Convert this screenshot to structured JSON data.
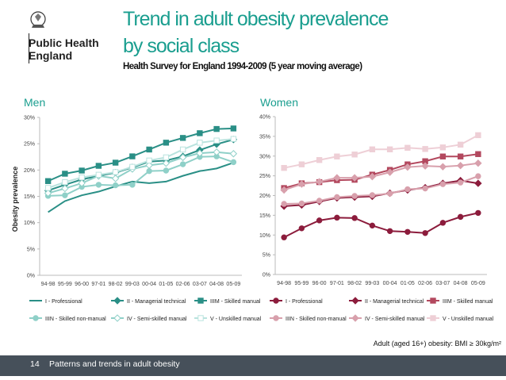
{
  "logo": {
    "line1": "Public Health",
    "line2": "England"
  },
  "title": {
    "line1": "Trend in adult obesity prevalence",
    "line2": "by social class"
  },
  "subtitle": "Health Survey for England 1994-2009 (5 year moving average)",
  "footnote": "Adult (aged 16+) obesity: BMI ≥ 30kg/m²",
  "footer": {
    "page": "14",
    "text": "Patterns and trends in adult obesity"
  },
  "colors": {
    "accent": "#1a9e8f",
    "footer_bg": "#46505a",
    "men_dark": "#3a9a92",
    "women_dark": "#8c1c3c"
  },
  "chart_data": [
    {
      "type": "line",
      "panel_label": "Men",
      "ylabel": "Obesity prevalence",
      "categories": [
        "94-98",
        "95-99",
        "96-00",
        "97-01",
        "98-02",
        "99-03",
        "00-04",
        "01-05",
        "02-06",
        "03-07",
        "04-08",
        "05-09"
      ],
      "yticks": [
        "0%",
        "5%",
        "10%",
        "15%",
        "20%",
        "25%",
        "30%"
      ],
      "ylim": [
        0,
        30
      ],
      "grid": false,
      "legend": "bottom",
      "series": [
        {
          "name": "I - Professional",
          "marker": "line",
          "color": "#2a8f86",
          "values": [
            12.0,
            14.1,
            15.2,
            15.9,
            16.9,
            17.8,
            17.5,
            17.8,
            18.9,
            19.8,
            20.3,
            21.4
          ]
        },
        {
          "name": "II - Managerial technical",
          "marker": "diamond-filled",
          "color": "#2a8f86",
          "values": [
            16.1,
            17.2,
            18.2,
            18.9,
            19.5,
            20.5,
            21.6,
            21.8,
            22.6,
            23.8,
            24.9,
            25.8
          ]
        },
        {
          "name": "IIIM - Skilled manual",
          "marker": "square-filled",
          "color": "#2a8f86",
          "values": [
            17.9,
            19.3,
            19.9,
            20.8,
            21.4,
            22.6,
            23.9,
            25.2,
            26.1,
            27.0,
            27.8,
            27.9
          ]
        },
        {
          "name": "IIIN - Skilled non-manual",
          "marker": "circle-filled",
          "color": "#8fd0c8",
          "values": [
            15.1,
            15.2,
            16.8,
            17.2,
            17.1,
            17.2,
            19.8,
            19.9,
            21.1,
            22.5,
            22.6,
            21.5
          ]
        },
        {
          "name": "IV - Semi-skilled manual",
          "marker": "diamond-open",
          "color": "#8fd0c8",
          "values": [
            15.6,
            16.5,
            17.5,
            18.9,
            18.4,
            20.2,
            20.9,
            21.3,
            22.4,
            23.2,
            23.4,
            23.1
          ]
        },
        {
          "name": "V - Unskilled manual",
          "marker": "square-open",
          "color": "#b9e3de",
          "values": [
            16.6,
            17.7,
            18.6,
            19.1,
            19.6,
            20.6,
            21.8,
            22.4,
            23.9,
            25.2,
            25.6,
            25.9
          ]
        }
      ]
    },
    {
      "type": "line",
      "panel_label": "Women",
      "categories": [
        "94-98",
        "95-99",
        "96-00",
        "97-01",
        "98-02",
        "99-03",
        "00-04",
        "01-05",
        "02-06",
        "03-07",
        "04-08",
        "05-09"
      ],
      "yticks": [
        "0%",
        "5%",
        "10%",
        "15%",
        "20%",
        "25%",
        "30%",
        "35%",
        "40%"
      ],
      "ylim": [
        0,
        40
      ],
      "grid": false,
      "legend": "bottom",
      "series": [
        {
          "name": "I - Professional",
          "marker": "circle-filled",
          "color": "#8c1c3c",
          "values": [
            9.4,
            11.7,
            13.7,
            14.4,
            14.3,
            12.4,
            11.0,
            10.8,
            10.5,
            13.1,
            14.6,
            15.6
          ]
        },
        {
          "name": "II - Managerial technical",
          "marker": "diamond-filled",
          "color": "#8c1c3c",
          "values": [
            17.3,
            17.6,
            18.5,
            19.4,
            19.6,
            19.8,
            20.6,
            21.4,
            22.0,
            23.1,
            23.8,
            23.1
          ]
        },
        {
          "name": "IIIM - Skilled manual",
          "marker": "square-filled",
          "color": "#b3485e",
          "values": [
            21.9,
            23.1,
            23.4,
            23.9,
            24.0,
            25.3,
            26.5,
            27.9,
            28.7,
            29.9,
            29.9,
            30.5
          ]
        },
        {
          "name": "IIIN - Skilled non-manual",
          "marker": "circle-filled",
          "color": "#d8a0ac",
          "values": [
            17.9,
            18.0,
            18.7,
            19.6,
            19.9,
            20.1,
            20.5,
            21.6,
            21.8,
            22.9,
            23.3,
            24.9
          ]
        },
        {
          "name": "IV - Semi-skilled manual",
          "marker": "diamond-filled",
          "color": "#d8a0ac",
          "values": [
            21.4,
            22.9,
            23.5,
            24.5,
            24.5,
            24.8,
            25.9,
            27.2,
            27.5,
            27.3,
            27.6,
            28.2
          ]
        },
        {
          "name": "V - Unskilled manual",
          "marker": "square-filled",
          "color": "#eecfd6",
          "values": [
            27.0,
            27.9,
            29.0,
            29.9,
            30.4,
            31.7,
            31.7,
            32.1,
            31.8,
            32.2,
            32.9,
            35.3
          ]
        }
      ]
    }
  ]
}
